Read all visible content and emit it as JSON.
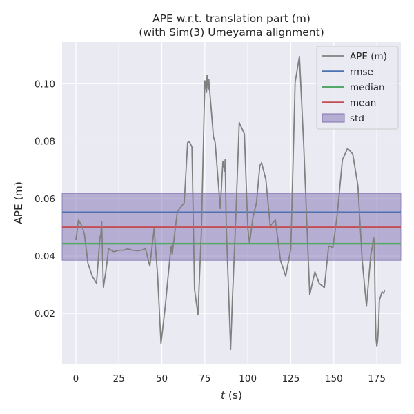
{
  "chart_data": {
    "type": "line",
    "title_lines": [
      "APE w.r.t. translation part (m)",
      "(with Sim(3) Umeyama alignment)"
    ],
    "xlabel_var": "t",
    "xlabel_unit": " (s)",
    "ylabel": "APE (m)",
    "xlim": [
      -8,
      189
    ],
    "ylim": [
      0.0025,
      0.1145
    ],
    "xticks": [
      0,
      25,
      50,
      75,
      100,
      125,
      150,
      175
    ],
    "yticks": [
      0.02,
      0.04,
      0.06,
      0.08,
      0.1
    ],
    "ytick_labels": [
      "0.02",
      "0.04",
      "0.06",
      "0.08",
      "0.10"
    ],
    "grid": true,
    "legend_position": "top-right",
    "legend": [
      "APE (m)",
      "rmse",
      "median",
      "mean",
      "std"
    ],
    "series": [
      {
        "name": "APE (m)",
        "color": "#808080",
        "x": [
          0,
          1.5,
          3.5,
          5,
          7,
          9.5,
          12,
          14,
          14.5,
          15,
          16,
          17.5,
          19,
          22,
          25,
          28,
          30,
          33,
          36,
          38,
          40.5,
          43,
          45.5,
          47.5,
          49.5,
          52,
          55,
          55.5,
          56,
          59,
          63,
          65,
          66,
          67.5,
          69,
          71,
          72.5,
          73,
          75,
          76,
          76.3,
          77,
          77.3,
          80,
          81,
          84,
          85.5,
          86.5,
          86.8,
          87.5,
          90,
          91,
          93,
          95,
          96.5,
          98,
          100,
          101,
          103,
          105,
          107,
          108,
          110.5,
          113,
          116,
          119,
          122,
          125,
          127.5,
          130,
          132.5,
          136,
          139,
          141.5,
          144.5,
          147,
          149.5,
          152,
          155,
          158,
          161,
          164,
          166.5,
          169,
          171.5,
          172.5,
          173,
          173.5,
          174,
          174.5,
          175,
          175.5,
          176,
          176.5,
          177,
          178,
          179,
          179.5
        ],
        "y": [
          0.0455,
          0.0525,
          0.0505,
          0.0475,
          0.0375,
          0.033,
          0.0305,
          0.0465,
          0.0475,
          0.052,
          0.029,
          0.035,
          0.0425,
          0.0415,
          0.042,
          0.042,
          0.0425,
          0.042,
          0.0418,
          0.042,
          0.0425,
          0.0365,
          0.0495,
          0.0335,
          0.0095,
          0.0225,
          0.0415,
          0.0435,
          0.0405,
          0.0555,
          0.0585,
          0.0795,
          0.0798,
          0.078,
          0.0285,
          0.0195,
          0.0415,
          0.0485,
          0.101,
          0.097,
          0.103,
          0.098,
          0.1015,
          0.0815,
          0.0795,
          0.0565,
          0.073,
          0.0695,
          0.0735,
          0.0495,
          0.0075,
          0.0245,
          0.0535,
          0.0865,
          0.0845,
          0.0825,
          0.0495,
          0.0445,
          0.0535,
          0.0585,
          0.0715,
          0.0725,
          0.0665,
          0.0505,
          0.0525,
          0.0385,
          0.033,
          0.0425,
          0.1005,
          0.1095,
          0.0785,
          0.0265,
          0.0345,
          0.0305,
          0.029,
          0.0435,
          0.043,
          0.0545,
          0.0735,
          0.0775,
          0.0755,
          0.0645,
          0.0385,
          0.0225,
          0.0405,
          0.0435,
          0.0465,
          0.0455,
          0.0255,
          0.0115,
          0.0085,
          0.0105,
          0.0155,
          0.0245,
          0.0255,
          0.0275,
          0.027,
          0.028
        ]
      },
      {
        "name": "rmse",
        "color": "#4c72b0",
        "value": 0.0552
      },
      {
        "name": "median",
        "color": "#55a868",
        "value": 0.0443
      },
      {
        "name": "mean",
        "color": "#c44e52",
        "value": 0.05
      },
      {
        "name": "std",
        "color": "#8172b2",
        "band": [
          0.0385,
          0.0618
        ]
      }
    ]
  }
}
